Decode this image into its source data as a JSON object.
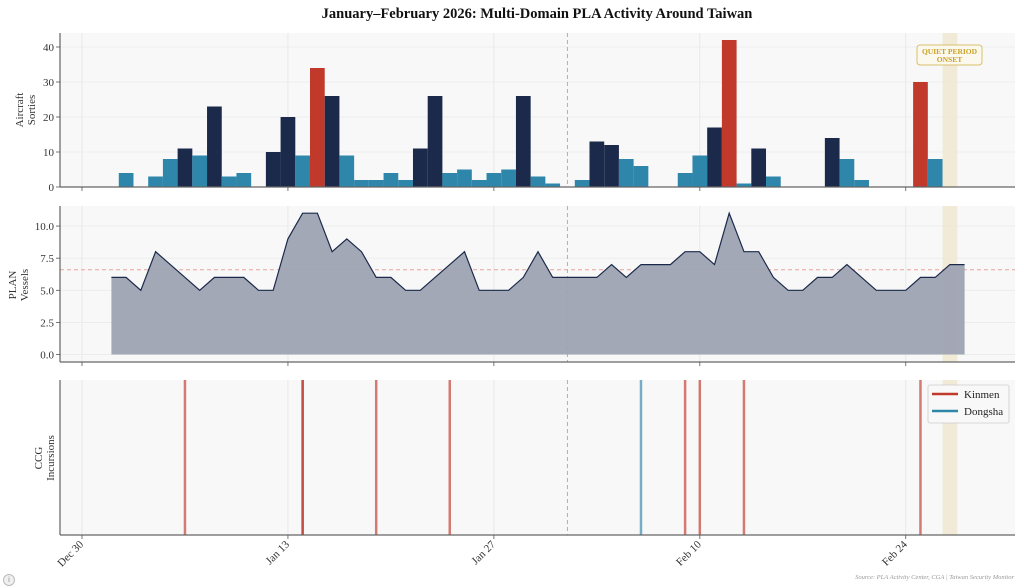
{
  "chart_data": {
    "title": "January–February 2026: Multi-Domain PLA Activity Around Taiwan",
    "source": "Source: PLA Activity Center, CGA | Taiwan Security Monitor",
    "x_axis": {
      "type": "date",
      "start": "2025-12-30",
      "range_days": [
        -1.5,
        63.5
      ],
      "ticks": [
        {
          "day": 0,
          "label": "Dec 30"
        },
        {
          "day": 14,
          "label": "Jan 13"
        },
        {
          "day": 28,
          "label": "Jan 27"
        },
        {
          "day": 42,
          "label": "Feb 10"
        },
        {
          "day": 56,
          "label": "Feb 24"
        }
      ],
      "grid": true
    },
    "reference_line": {
      "date": "Feb 1",
      "day": 33,
      "style": "dashed",
      "color": "#b0b0b0"
    },
    "quiet_period": {
      "start_day": 58.5,
      "end_day": 59.5,
      "color": "#efe6cc",
      "label_line1": "QUIET PERIOD",
      "label_line2": "ONSET",
      "label_color": "#c9a227"
    },
    "panels": [
      {
        "type": "bar",
        "ylabel_line1": "Aircraft",
        "ylabel_line2": "Sorties",
        "ylim": [
          0,
          44
        ],
        "yticks": [
          0,
          10,
          20,
          30,
          40
        ],
        "ytick_labels": [
          "0",
          "10",
          "20",
          "30",
          "40"
        ],
        "colors": {
          "navy": "#1b2a4a",
          "teal": "#2e86ab",
          "red": "#c0392b"
        },
        "bars": [
          {
            "date": "Jan 2",
            "day": 3,
            "value": 4,
            "color": "teal"
          },
          {
            "date": "Jan 4",
            "day": 5,
            "value": 3,
            "color": "teal"
          },
          {
            "date": "Jan 5",
            "day": 6,
            "value": 8,
            "color": "teal"
          },
          {
            "date": "Jan 6",
            "day": 7,
            "value": 11,
            "color": "navy"
          },
          {
            "date": "Jan 7",
            "day": 8,
            "value": 9,
            "color": "teal"
          },
          {
            "date": "Jan 8",
            "day": 9,
            "value": 23,
            "color": "navy"
          },
          {
            "date": "Jan 9",
            "day": 10,
            "value": 3,
            "color": "teal"
          },
          {
            "date": "Jan 10",
            "day": 11,
            "value": 4,
            "color": "teal"
          },
          {
            "date": "Jan 12",
            "day": 13,
            "value": 10,
            "color": "navy"
          },
          {
            "date": "Jan 13",
            "day": 14,
            "value": 20,
            "color": "navy"
          },
          {
            "date": "Jan 14",
            "day": 15,
            "value": 9,
            "color": "teal"
          },
          {
            "date": "Jan 15",
            "day": 16,
            "value": 34,
            "color": "red"
          },
          {
            "date": "Jan 16",
            "day": 17,
            "value": 26,
            "color": "navy"
          },
          {
            "date": "Jan 17",
            "day": 18,
            "value": 9,
            "color": "teal"
          },
          {
            "date": "Jan 18",
            "day": 19,
            "value": 2,
            "color": "teal"
          },
          {
            "date": "Jan 19",
            "day": 20,
            "value": 2,
            "color": "teal"
          },
          {
            "date": "Jan 20",
            "day": 21,
            "value": 4,
            "color": "teal"
          },
          {
            "date": "Jan 21",
            "day": 22,
            "value": 2,
            "color": "teal"
          },
          {
            "date": "Jan 22",
            "day": 23,
            "value": 11,
            "color": "navy"
          },
          {
            "date": "Jan 23",
            "day": 24,
            "value": 26,
            "color": "navy"
          },
          {
            "date": "Jan 24",
            "day": 25,
            "value": 4,
            "color": "teal"
          },
          {
            "date": "Jan 25",
            "day": 26,
            "value": 5,
            "color": "teal"
          },
          {
            "date": "Jan 26",
            "day": 27,
            "value": 2,
            "color": "teal"
          },
          {
            "date": "Jan 27",
            "day": 28,
            "value": 4,
            "color": "teal"
          },
          {
            "date": "Jan 28",
            "day": 29,
            "value": 5,
            "color": "teal"
          },
          {
            "date": "Jan 29",
            "day": 30,
            "value": 26,
            "color": "navy"
          },
          {
            "date": "Jan 30",
            "day": 31,
            "value": 3,
            "color": "teal"
          },
          {
            "date": "Jan 31",
            "day": 32,
            "value": 1,
            "color": "teal"
          },
          {
            "date": "Feb 2",
            "day": 34,
            "value": 2,
            "color": "teal"
          },
          {
            "date": "Feb 3",
            "day": 35,
            "value": 13,
            "color": "navy"
          },
          {
            "date": "Feb 4",
            "day": 36,
            "value": 12,
            "color": "navy"
          },
          {
            "date": "Feb 5",
            "day": 37,
            "value": 8,
            "color": "teal"
          },
          {
            "date": "Feb 6",
            "day": 38,
            "value": 6,
            "color": "teal"
          },
          {
            "date": "Feb 9",
            "day": 41,
            "value": 4,
            "color": "teal"
          },
          {
            "date": "Feb 10",
            "day": 42,
            "value": 9,
            "color": "teal"
          },
          {
            "date": "Feb 11",
            "day": 43,
            "value": 17,
            "color": "navy"
          },
          {
            "date": "Feb 12",
            "day": 44,
            "value": 42,
            "color": "red"
          },
          {
            "date": "Feb 13",
            "day": 45,
            "value": 1,
            "color": "teal"
          },
          {
            "date": "Feb 14",
            "day": 46,
            "value": 11,
            "color": "navy"
          },
          {
            "date": "Feb 15",
            "day": 47,
            "value": 3,
            "color": "teal"
          },
          {
            "date": "Feb 19",
            "day": 51,
            "value": 14,
            "color": "navy"
          },
          {
            "date": "Feb 20",
            "day": 52,
            "value": 8,
            "color": "teal"
          },
          {
            "date": "Feb 21",
            "day": 53,
            "value": 2,
            "color": "teal"
          },
          {
            "date": "Feb 25",
            "day": 57,
            "value": 30,
            "color": "red"
          },
          {
            "date": "Feb 26",
            "day": 58,
            "value": 8,
            "color": "teal"
          }
        ]
      },
      {
        "type": "area",
        "ylabel_line1": "PLAN",
        "ylabel_line2": "Vessels",
        "ylim": [
          -0.58,
          11.56
        ],
        "yticks": [
          0,
          2.5,
          5,
          7.5,
          10
        ],
        "ytick_labels": [
          "0.0",
          "2.5",
          "5.0",
          "7.5",
          "10.0"
        ],
        "fill_color": "#9ea3b3",
        "line_color": "#1b2a4a",
        "mean_line": {
          "value": 6.6,
          "color": "#e8a39a",
          "style": "dashed"
        },
        "start_day": 2,
        "values": [
          6,
          6,
          5,
          8,
          7,
          6,
          5,
          6,
          6,
          6,
          5,
          5,
          9,
          11,
          11,
          8,
          9,
          8,
          6,
          6,
          5,
          5,
          6,
          7,
          8,
          5,
          5,
          5,
          6,
          8,
          6,
          6,
          6,
          6,
          7,
          6,
          7,
          7,
          7,
          8,
          8,
          7,
          11,
          8,
          8,
          6,
          5,
          5,
          6,
          6,
          7,
          6,
          5,
          5,
          5,
          6,
          6,
          7,
          7
        ]
      },
      {
        "type": "event",
        "ylabel_line1": "CCG",
        "ylabel_line2": "Incursions",
        "series": [
          {
            "name": "Kinmen",
            "color": "#c0392b",
            "days": [
              7,
              15,
              15,
              20,
              25,
              41,
              42,
              45,
              57
            ],
            "dates": [
              "Jan 6",
              "Jan 14",
              "Jan 14",
              "Jan 19",
              "Jan 24",
              "Feb 9",
              "Feb 10",
              "Feb 13",
              "Feb 25"
            ]
          },
          {
            "name": "Dongsha",
            "color": "#2e86ab",
            "days": [
              38
            ],
            "dates": [
              "Feb 6"
            ]
          }
        ],
        "legend_position": "upper-right"
      }
    ]
  }
}
